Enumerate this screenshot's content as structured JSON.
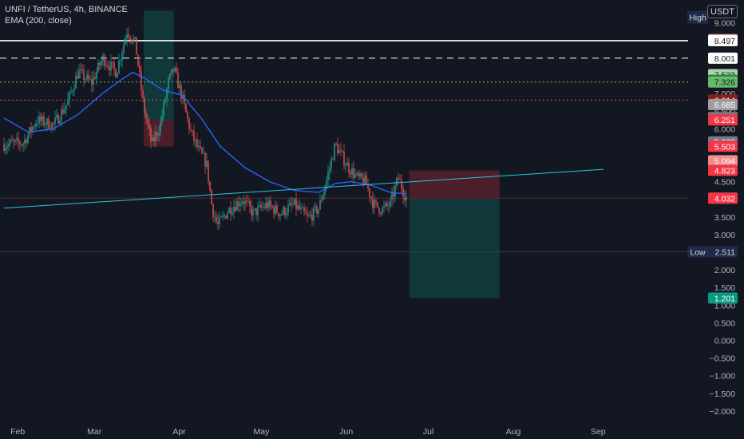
{
  "header": {
    "symbol_line": "UNFI / TetherUS, 4h, BINANCE",
    "indicator_line": "EMA (200, close)",
    "currency": "USDT"
  },
  "colors": {
    "background": "#131722",
    "grid": "#1e2230",
    "axis_text": "#b2b5be",
    "up": "#26a69a",
    "down": "#ef5350",
    "ema": "#2962ff",
    "trendline": "#26c6da"
  },
  "chart_data": {
    "type": "candlestick",
    "title": "UNFI / TetherUS, 4h, BINANCE",
    "timeframe": "4h",
    "xlabels": [
      "Feb",
      "Mar",
      "Apr",
      "May",
      "Jun",
      "Jul",
      "Aug",
      "Sep"
    ],
    "yticks": [
      9.0,
      8.5,
      8.0,
      7.5,
      7.0,
      6.5,
      6.0,
      5.5,
      5.0,
      4.5,
      4.0,
      3.5,
      3.0,
      2.5,
      2.0,
      1.5,
      1.0,
      0.5,
      0.0,
      -0.5,
      -1.0,
      -1.5,
      -2.0
    ],
    "ytick_labels": [
      "9.000",
      "8.500",
      "8.000",
      "7.500",
      "7.000",
      "6.500",
      "6.000",
      "5.500",
      "5.000",
      "4.500",
      "4.000",
      "3.500",
      "3.000",
      "2.500",
      "2.000",
      "1.500",
      "1.000",
      "0.500",
      "0.000",
      "−0.500",
      "−1.000",
      "−1.500",
      "−2.000"
    ],
    "ylim": [
      -2.15,
      9.4
    ],
    "price_path": [
      {
        "date": "2023-01-27",
        "price": 5.55
      },
      {
        "date": "2023-02-03",
        "price": 5.6
      },
      {
        "date": "2023-02-08",
        "price": 6.25
      },
      {
        "date": "2023-02-14",
        "price": 6.1
      },
      {
        "date": "2023-02-19",
        "price": 6.7
      },
      {
        "date": "2023-02-23",
        "price": 7.6
      },
      {
        "date": "2023-02-28",
        "price": 7.3
      },
      {
        "date": "2023-03-04",
        "price": 8.0
      },
      {
        "date": "2023-03-09",
        "price": 7.6
      },
      {
        "date": "2023-03-13",
        "price": 8.8
      },
      {
        "date": "2023-03-16",
        "price": 8.4
      },
      {
        "date": "2023-03-19",
        "price": 6.6
      },
      {
        "date": "2023-03-22",
        "price": 5.55
      },
      {
        "date": "2023-03-25",
        "price": 6.1
      },
      {
        "date": "2023-03-28",
        "price": 7.3
      },
      {
        "date": "2023-03-30",
        "price": 7.7
      },
      {
        "date": "2023-04-02",
        "price": 6.9
      },
      {
        "date": "2023-04-05",
        "price": 5.95
      },
      {
        "date": "2023-04-08",
        "price": 5.4
      },
      {
        "date": "2023-04-11",
        "price": 5.0
      },
      {
        "date": "2023-04-13",
        "price": 3.75
      },
      {
        "date": "2023-04-15",
        "price": 3.25
      },
      {
        "date": "2023-04-19",
        "price": 3.7
      },
      {
        "date": "2023-04-24",
        "price": 4.0
      },
      {
        "date": "2023-04-28",
        "price": 3.6
      },
      {
        "date": "2023-05-03",
        "price": 3.85
      },
      {
        "date": "2023-05-08",
        "price": 3.6
      },
      {
        "date": "2023-05-13",
        "price": 3.85
      },
      {
        "date": "2023-05-18",
        "price": 3.45
      },
      {
        "date": "2023-05-22",
        "price": 3.75
      },
      {
        "date": "2023-05-25",
        "price": 4.6
      },
      {
        "date": "2023-05-28",
        "price": 5.55
      },
      {
        "date": "2023-06-01",
        "price": 5.0
      },
      {
        "date": "2023-06-05",
        "price": 4.6
      },
      {
        "date": "2023-06-08",
        "price": 4.5
      },
      {
        "date": "2023-06-11",
        "price": 3.85
      },
      {
        "date": "2023-06-14",
        "price": 3.7
      },
      {
        "date": "2023-06-17",
        "price": 3.85
      },
      {
        "date": "2023-06-20",
        "price": 4.6
      },
      {
        "date": "2023-06-22",
        "price": 4.2
      },
      {
        "date": "2023-06-23",
        "price": 4.03
      }
    ],
    "ema200_path": [
      {
        "date": "2023-01-27",
        "price": 6.3
      },
      {
        "date": "2023-02-05",
        "price": 5.9
      },
      {
        "date": "2023-02-14",
        "price": 6.0
      },
      {
        "date": "2023-02-23",
        "price": 6.4
      },
      {
        "date": "2023-03-04",
        "price": 7.0
      },
      {
        "date": "2023-03-11",
        "price": 7.4
      },
      {
        "date": "2023-03-15",
        "price": 7.6
      },
      {
        "date": "2023-03-19",
        "price": 7.45
      },
      {
        "date": "2023-03-26",
        "price": 7.1
      },
      {
        "date": "2023-04-02",
        "price": 6.95
      },
      {
        "date": "2023-04-09",
        "price": 6.3
      },
      {
        "date": "2023-04-16",
        "price": 5.5
      },
      {
        "date": "2023-04-25",
        "price": 4.9
      },
      {
        "date": "2023-05-04",
        "price": 4.5
      },
      {
        "date": "2023-05-13",
        "price": 4.25
      },
      {
        "date": "2023-05-22",
        "price": 4.2
      },
      {
        "date": "2023-05-28",
        "price": 4.45
      },
      {
        "date": "2023-06-03",
        "price": 4.5
      },
      {
        "date": "2023-06-10",
        "price": 4.4
      },
      {
        "date": "2023-06-17",
        "price": 4.2
      },
      {
        "date": "2023-06-23",
        "price": 4.15
      }
    ],
    "trendline": [
      {
        "date": "2023-01-27",
        "price": 3.75
      },
      {
        "date": "2023-09-03",
        "price": 4.85
      }
    ],
    "positions": [
      {
        "kind": "long",
        "start": "2023-03-19",
        "end": "2023-03-30",
        "entry": 6.25,
        "target": 9.35,
        "stop": 5.5
      },
      {
        "kind": "short",
        "start": "2023-06-24",
        "end": "2023-07-27",
        "entry": 4.03,
        "target": 1.2,
        "stop": 4.82
      }
    ],
    "levels": [
      {
        "price": 8.497,
        "style": "solid",
        "color": "#ffffff"
      },
      {
        "price": 8.001,
        "style": "dashed",
        "color": "#ffffff"
      },
      {
        "price": 7.326,
        "style": "dotted",
        "color": "#8bc34a"
      },
      {
        "price": 6.814,
        "style": "dotted",
        "color": "#ef5350"
      },
      {
        "price": 2.511,
        "style": "solid",
        "color": "#363a45"
      },
      {
        "price": 4.032,
        "style": "solid",
        "color": "#4a2a30"
      }
    ],
    "price_labels": [
      {
        "text": "8.527",
        "price": 8.527,
        "bg": "#f08c8c",
        "fg": "#ffffff"
      },
      {
        "text": "8.497",
        "price": 8.497,
        "bg": "#ffffff",
        "fg": "#131722"
      },
      {
        "text": "8.001",
        "price": 8.001,
        "bg": "#ffffff",
        "fg": "#131722"
      },
      {
        "text": "7.533",
        "price": 7.533,
        "bg": "#a5d6a7",
        "fg": "#131722"
      },
      {
        "text": "7.374",
        "price": 7.374,
        "bg": "#2e7d32",
        "fg": "#ffffff"
      },
      {
        "text": "7.326",
        "price": 7.326,
        "bg": "#66bb6a",
        "fg": "#131722"
      },
      {
        "text": "6.814",
        "price": 6.814,
        "bg": "#8b1e1e",
        "fg": "#ffffff"
      },
      {
        "text": "6.685",
        "price": 6.685,
        "bg": "#9e9e9e",
        "fg": "#ffffff"
      },
      {
        "text": "6.317",
        "price": 6.317,
        "bg": "#787b86",
        "fg": "#ffffff"
      },
      {
        "text": "6.251",
        "price": 6.251,
        "bg": "#f23645",
        "fg": "#ffffff"
      },
      {
        "text": "5.628",
        "price": 5.628,
        "bg": "#787b86",
        "fg": "#ffffff"
      },
      {
        "text": "5.503",
        "price": 5.503,
        "bg": "#f23645",
        "fg": "#ffffff"
      },
      {
        "text": "5.094",
        "price": 5.094,
        "bg": "#f08c8c",
        "fg": "#ffffff"
      },
      {
        "text": "4.823",
        "price": 4.823,
        "bg": "#f23645",
        "fg": "#ffffff"
      },
      {
        "text": "4.033",
        "price": 4.033,
        "bg": "#787b86",
        "fg": "#ffffff"
      },
      {
        "text": "4.032",
        "price": 4.032,
        "bg": "#f23645",
        "fg": "#ffffff"
      },
      {
        "text": "2.511",
        "price": 2.511,
        "bg": "#1e2a48",
        "fg": "#d1d4dc",
        "tag": "Low"
      },
      {
        "text": "1.201",
        "price": 1.201,
        "bg": "#089981",
        "fg": "#ffffff"
      }
    ],
    "high_label": "High",
    "low_label": "Low",
    "grid": false,
    "legend_position": "top-left"
  }
}
